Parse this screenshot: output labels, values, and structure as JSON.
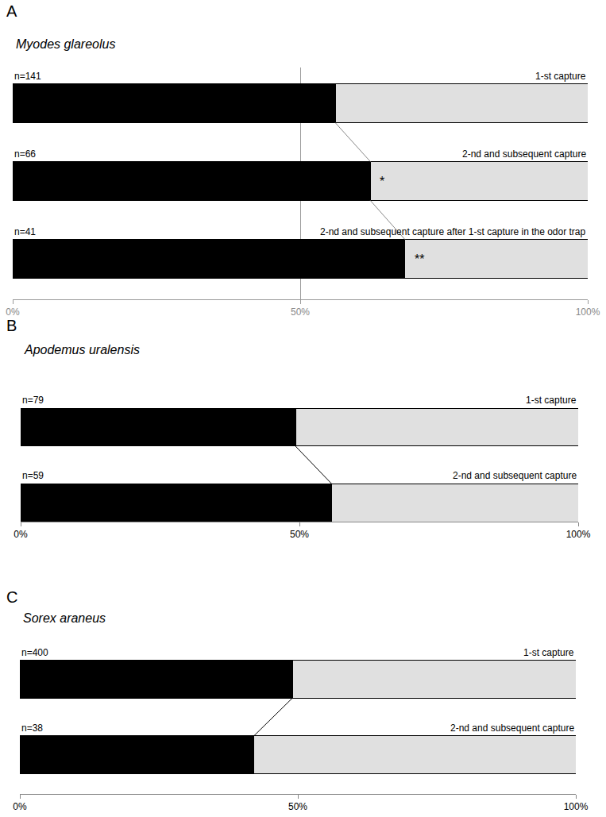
{
  "chart_data": [
    {
      "panel": "A",
      "type": "bar",
      "orientation": "horizontal",
      "stacked": true,
      "title": "Myodes glareolus",
      "categories": [
        "1-st capture",
        "2-nd and subsequent capture",
        "2-nd and subsequent capture after 1-st capture in the odor trap"
      ],
      "n_labels": [
        "n=141",
        "n=66",
        "n=41"
      ],
      "series": [
        {
          "color": "#000000",
          "values": [
            56.1,
            62.2,
            68.2
          ]
        },
        {
          "color": "#e0e0e0",
          "values": [
            43.9,
            37.8,
            31.8
          ]
        }
      ],
      "annotations": [
        {
          "category": "2-nd and subsequent capture",
          "text": "*"
        },
        {
          "category": "2-nd and subsequent capture after 1-st capture in the odor trap",
          "text": "**"
        }
      ],
      "xlim": [
        0,
        100
      ],
      "xticks": [
        {
          "value": 0,
          "label": "0%"
        },
        {
          "value": 50,
          "label": "50%"
        },
        {
          "value": 100,
          "label": "100%"
        }
      ],
      "grid": true,
      "tick_labels": "x"
    },
    {
      "panel": "B",
      "type": "bar",
      "orientation": "horizontal",
      "stacked": true,
      "title": "Apodemus uralensis",
      "categories": [
        "1-st capture",
        "2-nd and subsequent capture"
      ],
      "n_labels": [
        "n=79",
        "n=59"
      ],
      "series": [
        {
          "color": "#000000",
          "values": [
            49.3,
            55.8
          ]
        },
        {
          "color": "#e0e0e0",
          "values": [
            50.7,
            44.2
          ]
        }
      ],
      "xlim": [
        0,
        100
      ],
      "xticks": [
        {
          "value": 0,
          "label": "0%"
        },
        {
          "value": 50,
          "label": "50%"
        },
        {
          "value": 100,
          "label": "100%"
        }
      ],
      "grid": false,
      "tick_labels": "x"
    },
    {
      "panel": "C",
      "type": "bar",
      "orientation": "horizontal",
      "stacked": true,
      "title": "Sorex araneus",
      "categories": [
        "1-st capture",
        "2-nd and subsequent capture"
      ],
      "n_labels": [
        "n=400",
        "n=38"
      ],
      "series": [
        {
          "color": "#000000",
          "values": [
            49.0,
            42.1
          ]
        },
        {
          "color": "#e0e0e0",
          "values": [
            51.0,
            57.9
          ]
        }
      ],
      "xlim": [
        0,
        100
      ],
      "xticks": [
        {
          "value": 0,
          "label": "0%"
        },
        {
          "value": 50,
          "label": "50%"
        },
        {
          "value": 100,
          "label": "100%"
        }
      ],
      "grid": false,
      "tick_labels": "x"
    }
  ]
}
